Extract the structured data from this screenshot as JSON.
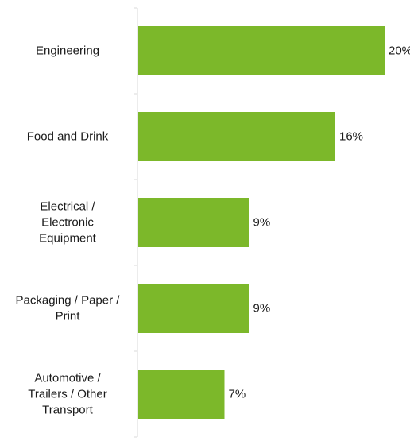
{
  "chart_data": {
    "type": "bar",
    "orientation": "horizontal",
    "title": "",
    "xlabel": "",
    "ylabel": "",
    "categories": [
      "Engineering",
      "Food and Drink",
      "Electrical / Electronic Equipment",
      "Packaging / Paper / Print",
      "Automotive / Trailers / Other Transport"
    ],
    "category_label_lines": [
      [
        "Engineering"
      ],
      [
        "Food and Drink"
      ],
      [
        "Electrical /",
        "Electronic",
        "Equipment"
      ],
      [
        "Packaging / Paper /",
        "Print"
      ],
      [
        "Automotive /",
        "Trailers / Other",
        "Transport"
      ]
    ],
    "values": [
      20,
      16,
      9,
      9,
      7
    ],
    "value_labels": [
      "20%",
      "16%",
      "9%",
      "9%",
      "7%"
    ],
    "unit": "%",
    "xlim": [
      0,
      22
    ],
    "grid": false,
    "legend": "none",
    "bar_color": "#7cb82a",
    "axis_color": "#d9d9d9"
  }
}
